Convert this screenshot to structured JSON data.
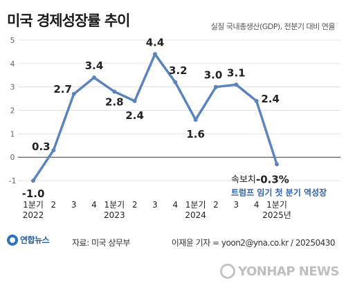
{
  "header": {
    "title": "미국 경제성장률 추이",
    "subtitle": "실질 국내총생산(GDP), 전분기 대비 연율"
  },
  "footer": {
    "source": "자료: 미국 상무부",
    "credit": "이재윤 기자 = yoon2@yna.co.kr / 20250430",
    "logo_text": "연합뉴스",
    "watermark_text": "YONHAP NEWS"
  },
  "colors": {
    "line": "#5b84bd",
    "annotation": "#2f62a8",
    "text": "#222222",
    "grid": "#dcdcdc",
    "axis": "#333333"
  },
  "chart_data": {
    "type": "line",
    "title": "미국 경제성장률 추이",
    "subtitle": "실질 국내총생산(GDP), 전분기 대비 연율",
    "ylim": [
      -1.5,
      5
    ],
    "yticks": [
      -1,
      0,
      1,
      2,
      3,
      4,
      5
    ],
    "ytick_labels": [
      "-1",
      "0",
      "1",
      "2",
      "3",
      "4",
      "5"
    ],
    "grid": true,
    "categories": [
      "1분기\n2022",
      "2",
      "3",
      "4",
      "1분기\n2023",
      "2",
      "3",
      "4",
      "1분기\n2024",
      "2",
      "3",
      "4",
      "1분기\n2025년"
    ],
    "series": [
      {
        "values": [
          -1.0,
          0.3,
          2.7,
          3.4,
          2.8,
          2.4,
          4.4,
          3.2,
          1.6,
          3.0,
          3.1,
          2.4,
          -0.3
        ],
        "labels": [
          "-1.0",
          "0.3",
          "2.7",
          "3.4",
          "2.8",
          "2.4",
          "4.4",
          "3.2",
          "1.6",
          "3.0",
          "3.1",
          "2.4",
          "-0.3%"
        ]
      }
    ],
    "annotation": {
      "prefix": "속보치",
      "value": "-0.3%",
      "note": "트럼프 임기 첫 분기 역성장"
    }
  }
}
